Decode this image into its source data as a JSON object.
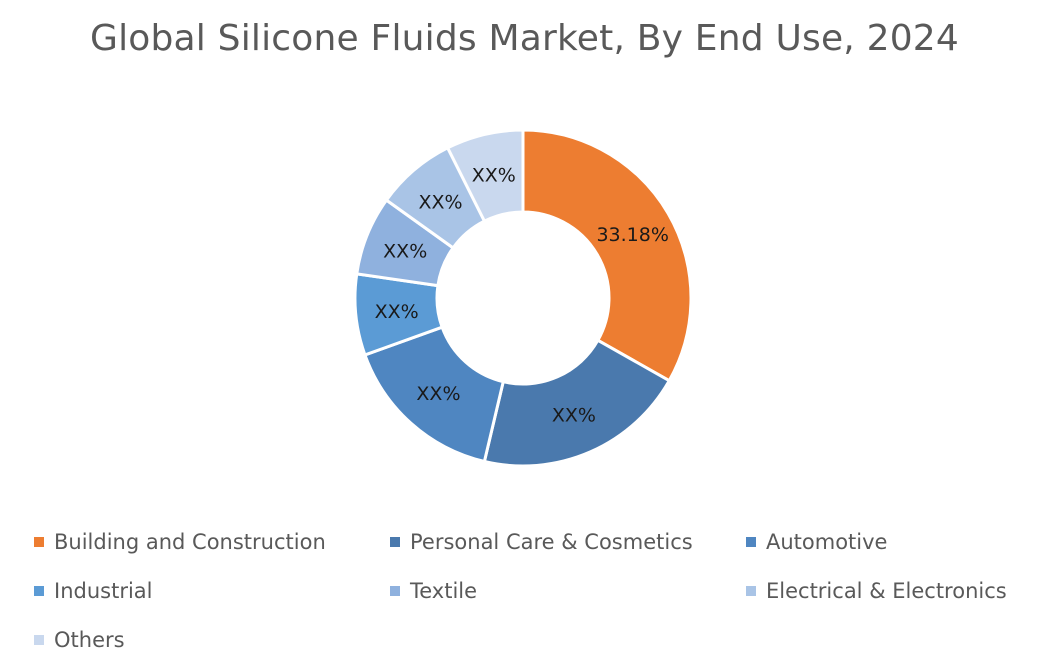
{
  "chart_data": {
    "type": "pie",
    "style": "donut",
    "title": "Global Silicone Fluids Market, By End Use, 2024",
    "legend_position": "bottom",
    "slices": [
      {
        "name": "Building and Construction",
        "value": 33.18,
        "label": "33.18%",
        "color": "#ED7D31"
      },
      {
        "name": "Personal Care & Cosmetics",
        "value": 20.5,
        "label": "XX%",
        "color": "#4A79AD"
      },
      {
        "name": "Automotive",
        "value": 15.8,
        "label": "XX%",
        "color": "#4F86C1"
      },
      {
        "name": "Industrial",
        "value": 7.8,
        "label": "XX%",
        "color": "#5B9BD5"
      },
      {
        "name": "Textile",
        "value": 7.6,
        "label": "XX%",
        "color": "#8FB1DE"
      },
      {
        "name": "Electrical & Electronics",
        "value": 7.7,
        "label": "XX%",
        "color": "#A9C4E6"
      },
      {
        "name": "Others",
        "value": 7.4,
        "label": "XX%",
        "color": "#C9D8EE"
      }
    ]
  }
}
